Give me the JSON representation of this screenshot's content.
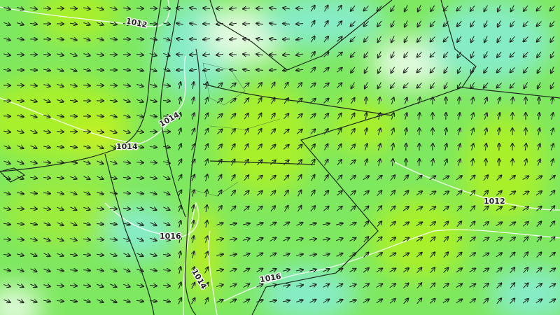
{
  "map": {
    "type": "wind-and-pressure",
    "colors": {
      "base": "#7ee860",
      "lime": "#a8f02c",
      "cyan": "#86ecc6",
      "pale": "#e4fbe0",
      "isobar": "#ffffff",
      "border": "#1e2a1e",
      "arrow": "#1a1a1a"
    },
    "isobar_labels": [
      "1012",
      "1014",
      "1014",
      "1012",
      "1016",
      "1014",
      "1016"
    ]
  }
}
